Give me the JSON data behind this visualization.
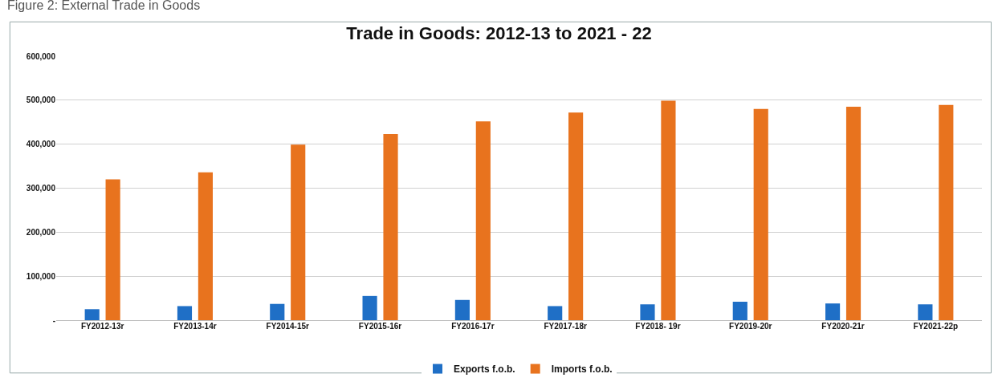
{
  "chart_data": {
    "type": "bar",
    "title": "Trade in Goods: 2012-13 to 2021 - 22",
    "annotations": [
      "Figure 2: External Trade in Goods"
    ],
    "categories": [
      "FY2012-13r",
      "FY2013-14r",
      "FY2014-15r",
      "FY2015-16r",
      "FY2016-17r",
      "FY2017-18r",
      "FY2018- 19r",
      "FY2019-20r",
      "FY2020-21r",
      "FY2021-22p"
    ],
    "series": [
      {
        "name": "Exports f.o.b.",
        "color": "#1f6fc6",
        "values": [
          25000,
          32000,
          37000,
          55000,
          46000,
          32000,
          36000,
          42000,
          38000,
          36000
        ]
      },
      {
        "name": "Imports f.o.b.",
        "color": "#e8731e",
        "values": [
          320000,
          336000,
          399000,
          423000,
          452000,
          472000,
          499000,
          480000,
          485000,
          489000
        ]
      }
    ],
    "ylim": [
      0,
      600000
    ],
    "yticks": [
      {
        "value": 0,
        "label": "-"
      },
      {
        "value": 100000,
        "label": "100,000"
      },
      {
        "value": 200000,
        "label": "200,000"
      },
      {
        "value": 300000,
        "label": "300,000"
      },
      {
        "value": 400000,
        "label": "400,000"
      },
      {
        "value": 500000,
        "label": "500,000"
      },
      {
        "value": 600000,
        "label": "600,000"
      }
    ],
    "grid": "y",
    "legend": "bottom"
  }
}
